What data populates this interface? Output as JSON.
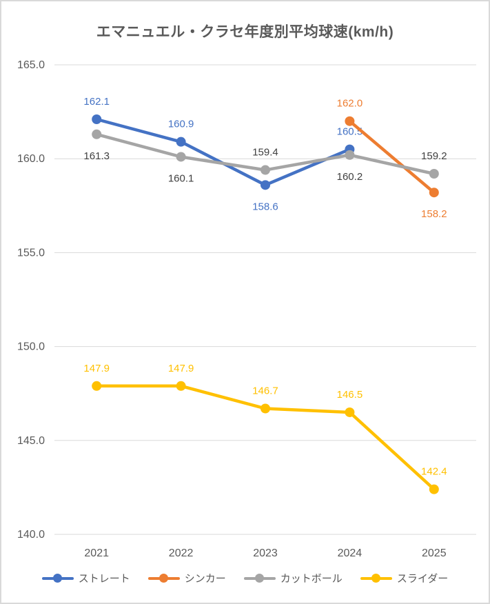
{
  "title": "エマニュエル・クラセ年度別平均球速(km/h)",
  "chart_data": {
    "type": "line",
    "title": "エマニュエル・クラセ年度別平均球速(km/h)",
    "categories": [
      "2021",
      "2022",
      "2023",
      "2024",
      "2025"
    ],
    "series": [
      {
        "name": "ストレート",
        "color": "#4472C4",
        "label_color": "#4472C4",
        "values": [
          162.1,
          160.9,
          158.6,
          160.5,
          null
        ],
        "label_positions": [
          "above",
          "above",
          "below",
          "above",
          null
        ]
      },
      {
        "name": "シンカー",
        "color": "#ED7D31",
        "label_color": "#ED7D31",
        "values": [
          null,
          null,
          null,
          162.0,
          158.2
        ],
        "label_positions": [
          null,
          null,
          null,
          "above",
          "below"
        ]
      },
      {
        "name": "カットボール",
        "color": "#A5A5A5",
        "label_color": "#404040",
        "values": [
          161.3,
          160.1,
          159.4,
          160.2,
          159.2
        ],
        "label_positions": [
          "below",
          "below",
          "above",
          "below",
          "above"
        ]
      },
      {
        "name": "スライダー",
        "color": "#FFC000",
        "label_color": "#FFC000",
        "values": [
          147.9,
          147.9,
          146.7,
          146.5,
          142.4
        ],
        "label_positions": [
          "above",
          "above",
          "above",
          "above",
          "above"
        ]
      }
    ],
    "ylim": [
      140,
      165
    ],
    "ytick_step": 5,
    "ytick_labels": [
      "165.0",
      "160.0",
      "155.0",
      "150.0",
      "145.0",
      "140.0"
    ],
    "grid": true,
    "legend_position": "bottom",
    "colors": {
      "grid": "#D9D9D9",
      "axis_text": "#595959",
      "title_text": "#595959",
      "border": "#D9D9D9"
    }
  }
}
